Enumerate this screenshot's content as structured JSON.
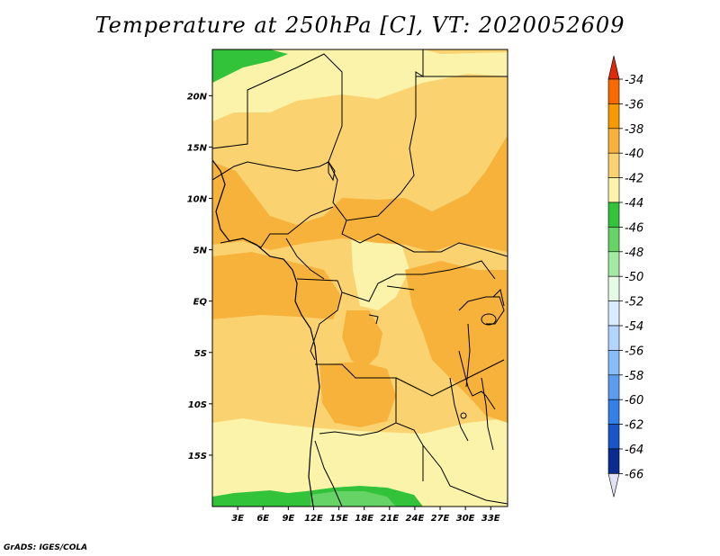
{
  "title": "Temperature at 250hPa [C], VT: 2020052609",
  "credit": "GrADS: IGES/COLA",
  "map": {
    "lon_labels": [
      "3E",
      "6E",
      "9E",
      "12E",
      "15E",
      "18E",
      "21E",
      "24E",
      "27E",
      "30E",
      "33E"
    ],
    "lat_labels": [
      "20N",
      "15N",
      "10N",
      "5N",
      "EQ",
      "5S",
      "10S",
      "15S"
    ],
    "lon_range": [
      0,
      35
    ],
    "lat_range": [
      -20,
      24.5
    ]
  },
  "colorbar": {
    "labels": [
      "-34",
      "-36",
      "-38",
      "-40",
      "-42",
      "-44",
      "-46",
      "-48",
      "-50",
      "-52",
      "-54",
      "-56",
      "-58",
      "-60",
      "-62",
      "-64",
      "-66"
    ],
    "colors": [
      "#e02a0a",
      "#f86a00",
      "#f79a00",
      "#f7b23c",
      "#fad370",
      "#fbf3a9",
      "#33c33b",
      "#66d366",
      "#a3eba3",
      "#e5fbe5",
      "#d8ecff",
      "#b2d5ff",
      "#86bdf9",
      "#5b9cef",
      "#3480e8",
      "#1a55c8",
      "#0a2b8f",
      "#000a60",
      "#ddddf0"
    ],
    "top_color": "#e02a0a",
    "bottom_color": "#e1e1f5"
  }
}
